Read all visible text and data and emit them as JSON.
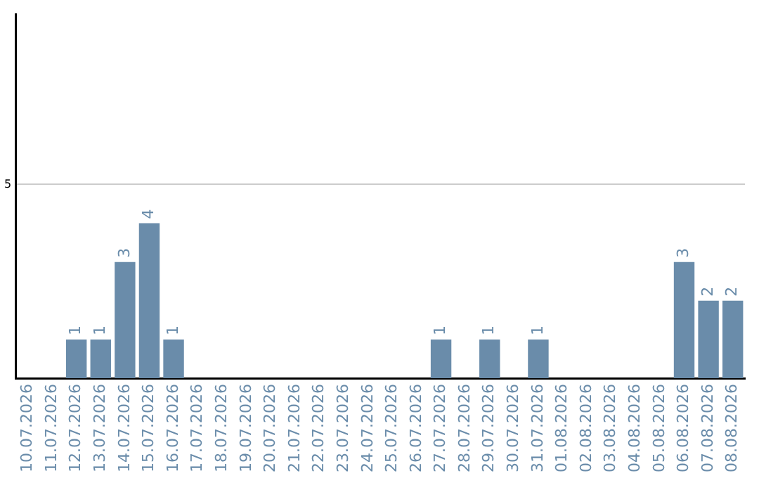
{
  "chart_data": {
    "type": "bar",
    "categories": [
      "10.07.2026",
      "11.07.2026",
      "12.07.2026",
      "13.07.2026",
      "14.07.2026",
      "15.07.2026",
      "16.07.2026",
      "17.07.2026",
      "18.07.2026",
      "19.07.2026",
      "20.07.2026",
      "21.07.2026",
      "22.07.2026",
      "23.07.2026",
      "24.07.2026",
      "25.07.2026",
      "26.07.2026",
      "27.07.2026",
      "28.07.2026",
      "29.07.2026",
      "30.07.2026",
      "31.07.2026",
      "01.08.2026",
      "02.08.2026",
      "03.08.2026",
      "04.08.2026",
      "05.08.2026",
      "06.08.2026",
      "07.08.2026",
      "08.08.2026"
    ],
    "values": [
      0,
      0,
      1,
      1,
      3,
      4,
      1,
      0,
      0,
      0,
      0,
      0,
      0,
      0,
      0,
      0,
      0,
      1,
      0,
      1,
      0,
      1,
      0,
      0,
      0,
      0,
      0,
      3,
      2,
      2
    ],
    "value_labels": [
      null,
      null,
      "1",
      "1",
      "3",
      "4",
      "1",
      null,
      null,
      null,
      null,
      null,
      null,
      null,
      null,
      null,
      null,
      "1",
      null,
      "1",
      null,
      "1",
      null,
      null,
      null,
      null,
      null,
      "3",
      "2",
      "2"
    ],
    "color": "#6a8caa",
    "ylim": [
      0,
      9.4
    ],
    "yticks": [
      5
    ],
    "grid": "y",
    "legend": false
  }
}
